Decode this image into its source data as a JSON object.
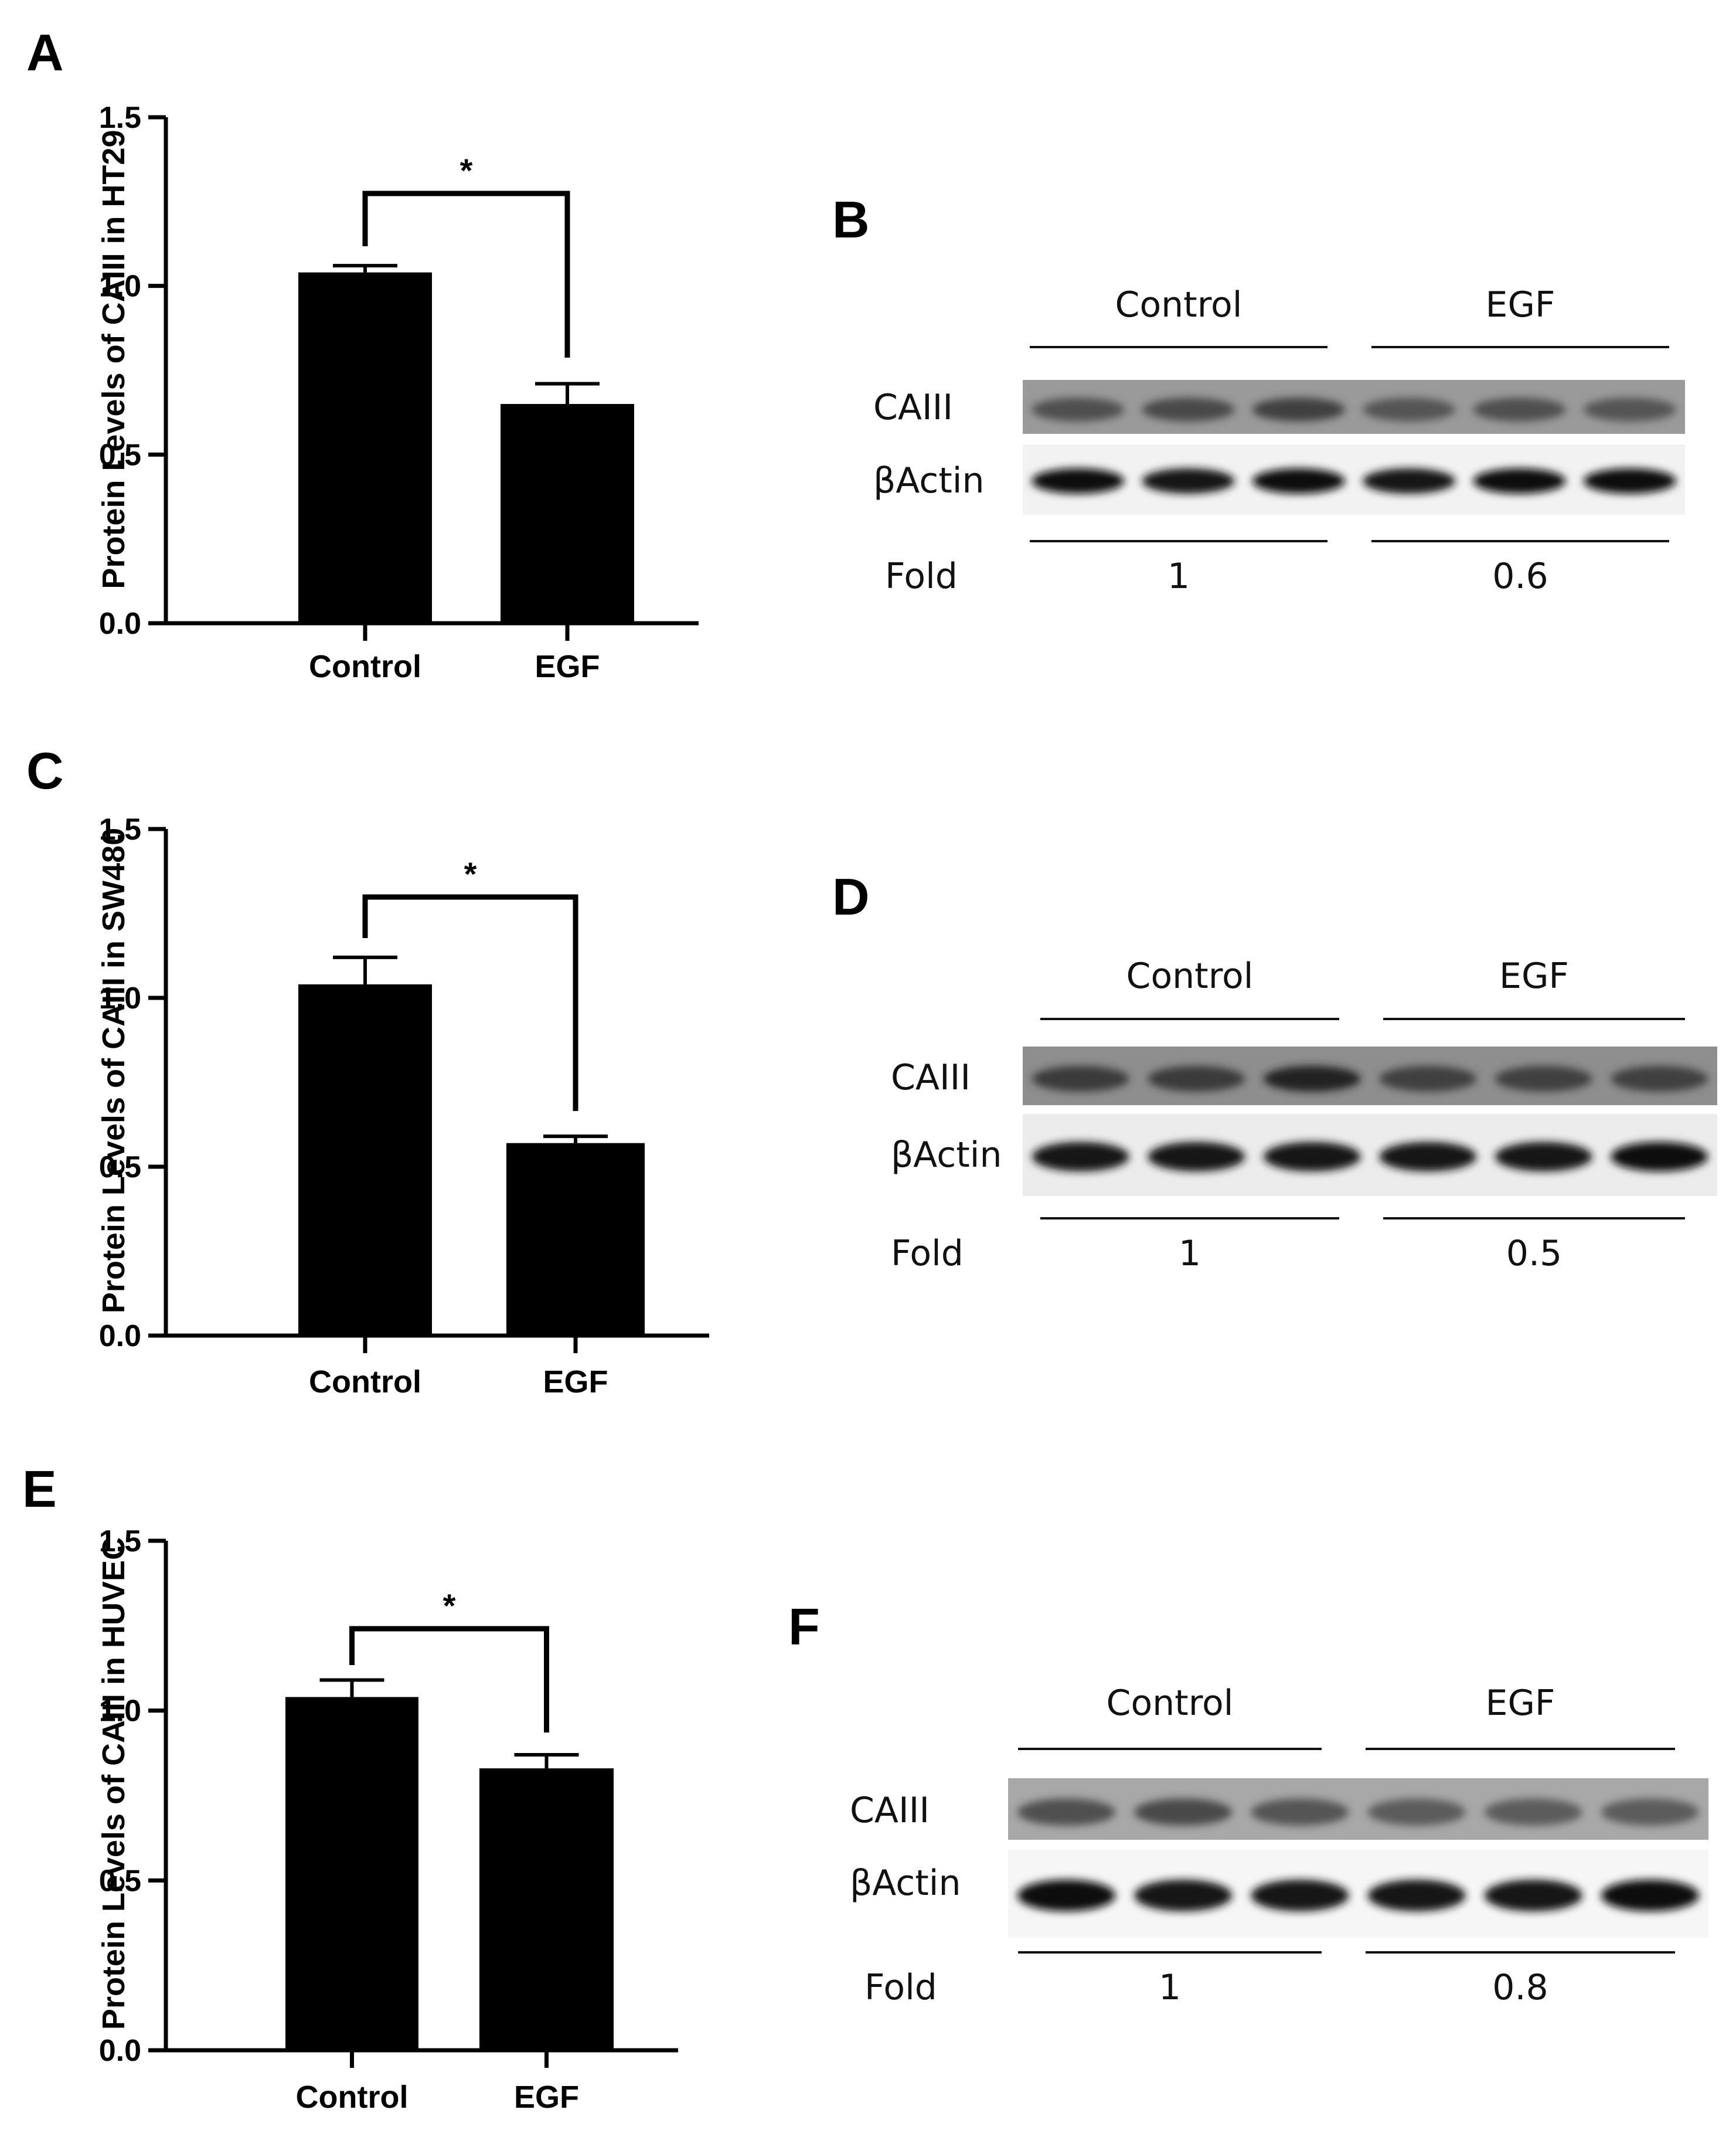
{
  "panel_labels": [
    "A",
    "B",
    "C",
    "D",
    "E",
    "F"
  ],
  "chart_data": [
    {
      "panel": "A",
      "type": "bar",
      "categories": [
        "Control",
        "EGF"
      ],
      "values": [
        1.04,
        0.65
      ],
      "errors": [
        0.02,
        0.06
      ],
      "ylabel": "Protein Levels of CAIII in HT29",
      "ylim": [
        0,
        1.5
      ],
      "yticks": [
        "0.0",
        "0.5",
        "1.0",
        "1.5"
      ],
      "yticks_values": [
        0,
        0.5,
        1.0,
        1.5
      ],
      "significance": "*",
      "bar_color": "#000000"
    },
    {
      "panel": "C",
      "type": "bar",
      "categories": [
        "Control",
        "EGF"
      ],
      "values": [
        1.04,
        0.57
      ],
      "errors": [
        0.08,
        0.02
      ],
      "ylabel": "Protein Levels of CAIII in SW480",
      "ylim": [
        0,
        1.5
      ],
      "yticks": [
        "0.0",
        "0.5",
        "1.0",
        "1.5"
      ],
      "yticks_values": [
        0,
        0.5,
        1.0,
        1.5
      ],
      "significance": "*",
      "bar_color": "#000000"
    },
    {
      "panel": "E",
      "type": "bar",
      "categories": [
        "Control",
        "EGF"
      ],
      "values": [
        1.04,
        0.83
      ],
      "errors": [
        0.05,
        0.04
      ],
      "ylabel": "Protein Levels of CAIII in HUVEC",
      "ylim": [
        0,
        1.5
      ],
      "yticks": [
        "0.0",
        "0.5",
        "1.0",
        "1.5"
      ],
      "yticks_values": [
        0,
        0.5,
        1.0,
        1.5
      ],
      "significance": "*",
      "bar_color": "#000000"
    }
  ],
  "blots": [
    {
      "panel": "B",
      "group_labels": [
        "Control",
        "EGF"
      ],
      "row_labels": [
        "CAIII",
        "βActin"
      ],
      "fold_label": "Fold",
      "fold_values": [
        "1",
        "0.6"
      ],
      "caiii_intensity": [
        0.55,
        0.6,
        0.7,
        0.5,
        0.55,
        0.5
      ],
      "actin_intensity": [
        0.95,
        0.9,
        0.95,
        0.9,
        0.95,
        0.95
      ]
    },
    {
      "panel": "D",
      "group_labels": [
        "Control",
        "EGF"
      ],
      "row_labels": [
        "CAIII",
        "βActin"
      ],
      "fold_label": "Fold",
      "fold_values": [
        "1",
        "0.5"
      ],
      "caiii_intensity": [
        0.75,
        0.75,
        0.95,
        0.7,
        0.7,
        0.7
      ],
      "actin_intensity": [
        0.85,
        0.85,
        0.85,
        0.9,
        0.9,
        0.95
      ]
    },
    {
      "panel": "F",
      "group_labels": [
        "Control",
        "EGF"
      ],
      "row_labels": [
        "CAIII",
        "βActin"
      ],
      "fold_label": "Fold",
      "fold_values": [
        "1",
        "0.8"
      ],
      "caiii_intensity": [
        0.55,
        0.6,
        0.5,
        0.45,
        0.45,
        0.45
      ],
      "actin_intensity": [
        0.95,
        0.9,
        0.85,
        0.85,
        0.9,
        0.95
      ]
    }
  ]
}
